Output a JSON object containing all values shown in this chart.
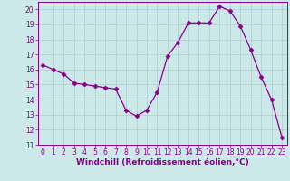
{
  "x": [
    0,
    1,
    2,
    3,
    4,
    5,
    6,
    7,
    8,
    9,
    10,
    11,
    12,
    13,
    14,
    15,
    16,
    17,
    18,
    19,
    20,
    21,
    22,
    23
  ],
  "y": [
    16.3,
    16.0,
    15.7,
    15.1,
    15.0,
    14.9,
    14.8,
    14.7,
    13.3,
    12.9,
    13.3,
    14.5,
    16.9,
    17.8,
    19.1,
    19.1,
    19.1,
    20.2,
    19.9,
    18.9,
    17.3,
    15.5,
    14.0,
    11.5
  ],
  "line_color": "#880088",
  "marker": "D",
  "marker_size": 2.5,
  "bg_color": "#cce8e8",
  "grid_color": "#aacece",
  "xlabel": "Windchill (Refroidissement éolien,°C)",
  "xlabel_color": "#880088",
  "ylim": [
    11,
    20.5
  ],
  "xlim": [
    -0.5,
    23.5
  ],
  "yticks": [
    11,
    12,
    13,
    14,
    15,
    16,
    17,
    18,
    19,
    20
  ],
  "xticks": [
    0,
    1,
    2,
    3,
    4,
    5,
    6,
    7,
    8,
    9,
    10,
    11,
    12,
    13,
    14,
    15,
    16,
    17,
    18,
    19,
    20,
    21,
    22,
    23
  ],
  "tick_label_size": 5.5,
  "xlabel_size": 6.5
}
